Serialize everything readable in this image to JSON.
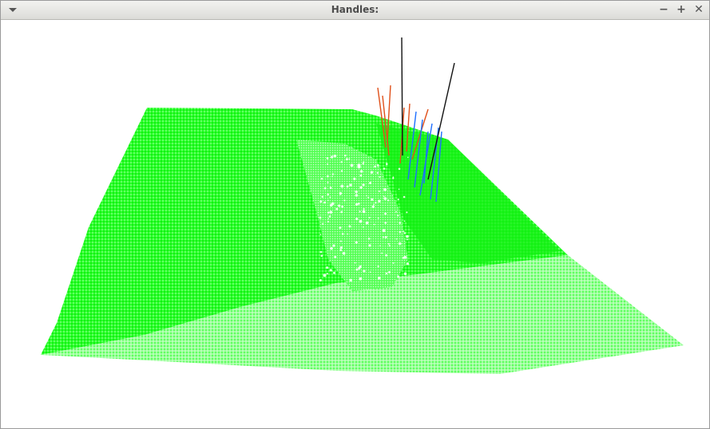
{
  "window": {
    "title": "Handles:",
    "menu_icon": "dropdown-triangle-icon",
    "minimize_glyph": "−",
    "maximize_glyph": "+",
    "close_glyph": "✕"
  },
  "scene": {
    "description_colors": {
      "terrain_primary": "#00ff00",
      "terrain_light": "#66ff66",
      "handle_orange": "#e0501a",
      "handle_blue": "#1e6fff",
      "handle_black": "#111111"
    }
  }
}
